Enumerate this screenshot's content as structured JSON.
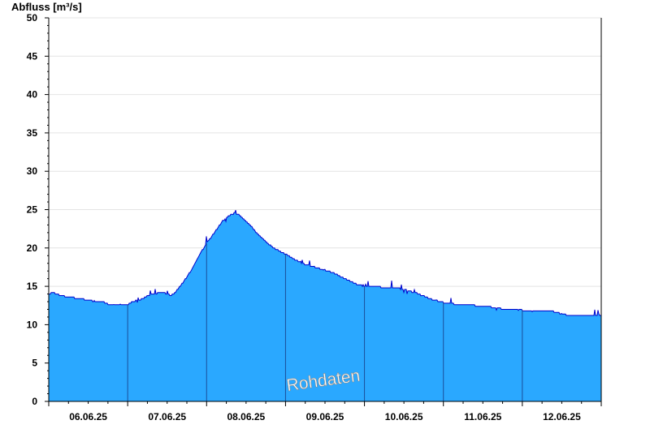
{
  "chart_data": {
    "type": "area",
    "ylabel": "Abfluss [m³/s]",
    "xlabel": "",
    "title": "",
    "ylim": [
      0,
      50
    ],
    "yticks": [
      0,
      5,
      10,
      15,
      20,
      25,
      30,
      35,
      40,
      45,
      50
    ],
    "xlim": [
      0,
      7
    ],
    "x_unit": "days from 06.06.25 00:00",
    "categories": [
      "06.06.25",
      "07.06.25",
      "08.06.25",
      "09.06.25",
      "10.06.25",
      "11.06.25",
      "12.06.25"
    ],
    "watermark": "Rohdaten",
    "grid": true,
    "fill_color": "#2aa8ff",
    "line_color": "#0000cc",
    "day_line_color": "#1a4f9a",
    "series": [
      {
        "x": [
          0,
          0.05,
          0.15,
          0.25,
          0.4,
          0.6,
          0.7,
          0.8,
          0.9,
          1.0,
          1.05,
          1.15,
          1.3,
          1.45,
          1.55,
          1.6,
          1.7,
          1.8,
          1.9,
          2.0,
          2.1,
          2.2,
          2.3,
          2.35,
          2.4,
          2.45,
          2.55,
          2.65,
          2.75,
          2.85,
          3.0,
          3.1,
          3.2,
          3.4,
          3.6,
          3.75,
          3.9,
          4.0,
          4.2,
          4.4,
          4.5,
          4.7,
          4.85,
          5.0,
          5.2,
          5.4,
          5.6,
          5.8,
          6.0,
          6.2,
          6.4,
          6.5,
          6.6,
          6.8,
          7.0
        ],
        "values": [
          14.0,
          14.2,
          13.8,
          13.6,
          13.4,
          13.0,
          12.9,
          12.5,
          12.6,
          12.6,
          13.0,
          13.2,
          14.0,
          14.2,
          13.8,
          14.2,
          15.5,
          17.0,
          19.0,
          20.6,
          22.0,
          23.5,
          24.3,
          24.6,
          24.4,
          24.0,
          23.0,
          21.8,
          20.8,
          20.0,
          19.2,
          18.6,
          18.0,
          17.4,
          16.8,
          16.0,
          15.3,
          15.0,
          14.9,
          14.8,
          14.6,
          14.0,
          13.3,
          12.9,
          12.6,
          12.5,
          12.3,
          12.0,
          11.9,
          11.8,
          11.7,
          11.4,
          11.2,
          11.1,
          11.1
        ]
      }
    ]
  }
}
